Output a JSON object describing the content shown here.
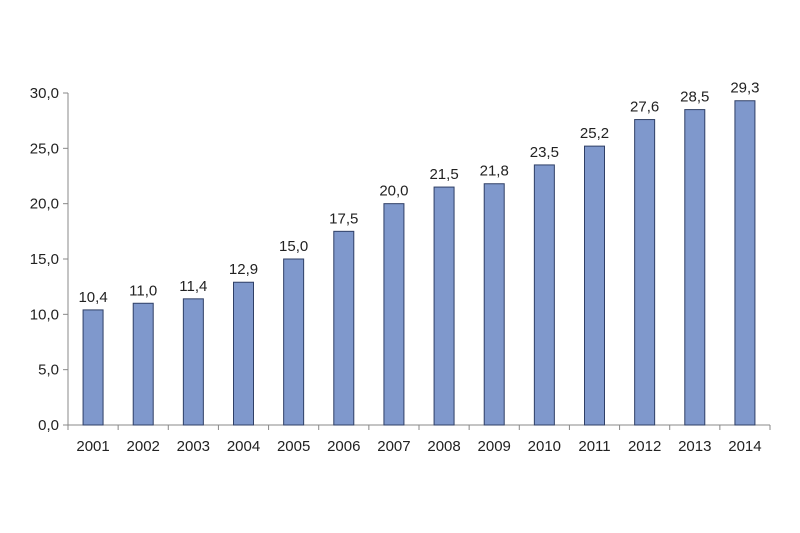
{
  "chart_data": {
    "type": "bar",
    "categories": [
      "2001",
      "2002",
      "2003",
      "2004",
      "2005",
      "2006",
      "2007",
      "2008",
      "2009",
      "2010",
      "2011",
      "2012",
      "2013",
      "2014"
    ],
    "values": [
      10.4,
      11.0,
      11.4,
      12.9,
      15.0,
      17.5,
      20.0,
      21.5,
      21.8,
      23.5,
      25.2,
      27.6,
      28.5,
      29.3
    ],
    "data_labels": [
      "10,4",
      "11,0",
      "11,4",
      "12,9",
      "15,0",
      "17,5",
      "20,0",
      "21,5",
      "21,8",
      "23,5",
      "25,2",
      "27,6",
      "28,5",
      "29,3"
    ],
    "yticks": [
      0,
      5,
      10,
      15,
      20,
      25,
      30
    ],
    "ytick_labels": [
      "0,0",
      "5,0",
      "10,0",
      "15,0",
      "20,0",
      "25,0",
      "30,0"
    ],
    "ylim": [
      0,
      30
    ],
    "grid": false,
    "legend": "none",
    "colors": {
      "bar_fill": "#7f98cc",
      "bar_stroke": "#2f3f66",
      "axis": "#888888"
    }
  }
}
